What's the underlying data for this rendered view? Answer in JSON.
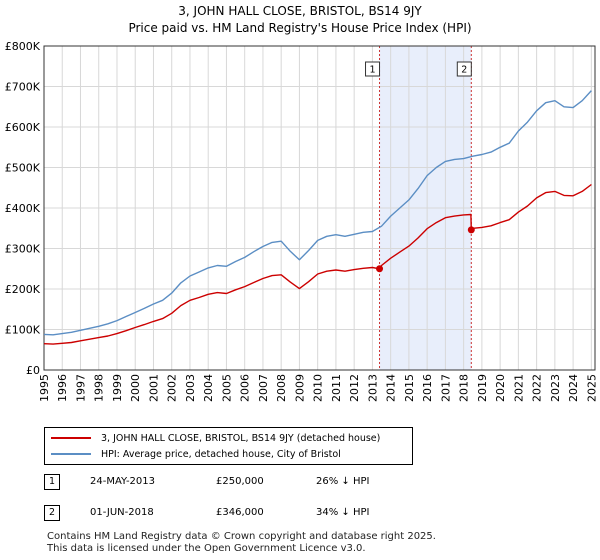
{
  "chart_data": {
    "type": "line",
    "title": "3, JOHN HALL CLOSE, BRISTOL, BS14 9JY",
    "subtitle": "Price paid vs. HM Land Registry's House Price Index (HPI)",
    "xlabel": "",
    "ylabel": "",
    "xlim": [
      1995,
      2025.2
    ],
    "ylim": [
      0,
      800000
    ],
    "y_ticks": [
      0,
      100000,
      200000,
      300000,
      400000,
      500000,
      600000,
      700000,
      800000
    ],
    "y_tick_labels": [
      "£0",
      "£100K",
      "£200K",
      "£300K",
      "£400K",
      "£500K",
      "£600K",
      "£700K",
      "£800K"
    ],
    "x_ticks": [
      1995,
      1996,
      1997,
      1998,
      1999,
      2000,
      2001,
      2002,
      2003,
      2004,
      2005,
      2006,
      2007,
      2008,
      2009,
      2010,
      2011,
      2012,
      2013,
      2014,
      2015,
      2016,
      2017,
      2018,
      2019,
      2020,
      2021,
      2022,
      2023,
      2024,
      2025
    ],
    "x_tick_labels": [
      "1995",
      "1996",
      "1997",
      "1998",
      "1999",
      "2000",
      "2001",
      "2002",
      "2003",
      "2004",
      "2005",
      "2006",
      "2007",
      "2008",
      "2009",
      "2010",
      "2011",
      "2012",
      "2013",
      "2014",
      "2015",
      "2016",
      "2017",
      "2018",
      "2019",
      "2020",
      "2021",
      "2022",
      "2023",
      "2024",
      "2025"
    ],
    "grid": true,
    "shaded_region": [
      2013.39,
      2018.42
    ],
    "series": [
      {
        "name": "HPI: Average price, detached house, City of Bristol",
        "color": "#5b8ec4",
        "x": [
          1995,
          1995.5,
          1996,
          1996.5,
          1997,
          1997.5,
          1998,
          1998.5,
          1999,
          1999.5,
          2000,
          2000.5,
          2001,
          2001.5,
          2002,
          2002.5,
          2003,
          2003.5,
          2004,
          2004.5,
          2005,
          2005.5,
          2006,
          2006.5,
          2007,
          2007.5,
          2008,
          2008.5,
          2009,
          2009.5,
          2010,
          2010.5,
          2011,
          2011.5,
          2012,
          2012.5,
          2013,
          2013.5,
          2014,
          2014.5,
          2015,
          2015.5,
          2016,
          2016.5,
          2017,
          2017.5,
          2018,
          2018.5,
          2019,
          2019.5,
          2020,
          2020.5,
          2021,
          2021.5,
          2022,
          2022.5,
          2023,
          2023.5,
          2024,
          2024.5,
          2025
        ],
        "values": [
          88000,
          87000,
          90000,
          93000,
          98000,
          103000,
          108000,
          114000,
          122000,
          132000,
          142000,
          152000,
          163000,
          172000,
          190000,
          215000,
          232000,
          242000,
          252000,
          258000,
          256000,
          268000,
          278000,
          292000,
          305000,
          315000,
          318000,
          293000,
          272000,
          295000,
          320000,
          330000,
          334000,
          330000,
          335000,
          340000,
          342000,
          355000,
          380000,
          400000,
          420000,
          448000,
          480000,
          500000,
          515000,
          520000,
          522000,
          528000,
          532000,
          538000,
          550000,
          560000,
          590000,
          612000,
          640000,
          660000,
          665000,
          650000,
          648000,
          665000,
          690000
        ]
      },
      {
        "name": "3, JOHN HALL CLOSE, BRISTOL, BS14 9JY (detached house)",
        "color": "#cc0000",
        "x": [
          1995,
          1995.5,
          1996,
          1996.5,
          1997,
          1997.5,
          1998,
          1998.5,
          1999,
          1999.5,
          2000,
          2000.5,
          2001,
          2001.5,
          2002,
          2002.5,
          2003,
          2003.5,
          2004,
          2004.5,
          2005,
          2005.5,
          2006,
          2006.5,
          2007,
          2007.5,
          2008,
          2008.5,
          2009,
          2009.5,
          2010,
          2010.5,
          2011,
          2011.5,
          2012,
          2012.5,
          2013,
          2013.39,
          2013.5,
          2014,
          2014.5,
          2015,
          2015.5,
          2016,
          2016.5,
          2017,
          2017.5,
          2018,
          2018.4,
          2018.42,
          2018.5,
          2019,
          2019.5,
          2020,
          2020.5,
          2021,
          2021.5,
          2022,
          2022.5,
          2023,
          2023.5,
          2024,
          2024.5,
          2025
        ],
        "values": [
          65000,
          64000,
          66000,
          68000,
          72000,
          76000,
          80000,
          84000,
          90000,
          97000,
          105000,
          112000,
          120000,
          127000,
          140000,
          159000,
          172000,
          179000,
          187000,
          191000,
          189000,
          198000,
          206000,
          216000,
          226000,
          233000,
          235000,
          217000,
          201000,
          218000,
          237000,
          244000,
          247000,
          244000,
          248000,
          251000,
          253000,
          250000,
          258000,
          276000,
          291000,
          306000,
          326000,
          349000,
          364000,
          376000,
          380000,
          383000,
          384000,
          346000,
          350000,
          352000,
          356000,
          364000,
          371000,
          390000,
          405000,
          425000,
          438000,
          441000,
          431000,
          430000,
          441000,
          458000
        ]
      }
    ],
    "annotations": [
      {
        "label": "1",
        "x": 2013.39,
        "value": 250000
      },
      {
        "label": "2",
        "x": 2018.42,
        "value": 346000
      }
    ]
  },
  "legend": {
    "entries": [
      {
        "label": "3, JOHN HALL CLOSE, BRISTOL, BS14 9JY (detached house)",
        "color": "#cc0000"
      },
      {
        "label": "HPI: Average price, detached house, City of Bristol",
        "color": "#5b8ec4"
      }
    ]
  },
  "sales": [
    {
      "num": "1",
      "date": "24-MAY-2013",
      "price": "£250,000",
      "hpi": "26% ↓ HPI"
    },
    {
      "num": "2",
      "date": "01-JUN-2018",
      "price": "£346,000",
      "hpi": "34% ↓ HPI"
    }
  ],
  "footer": {
    "line1": "Contains HM Land Registry data © Crown copyright and database right 2025.",
    "line2": "This data is licensed under the Open Government Licence v3.0."
  }
}
